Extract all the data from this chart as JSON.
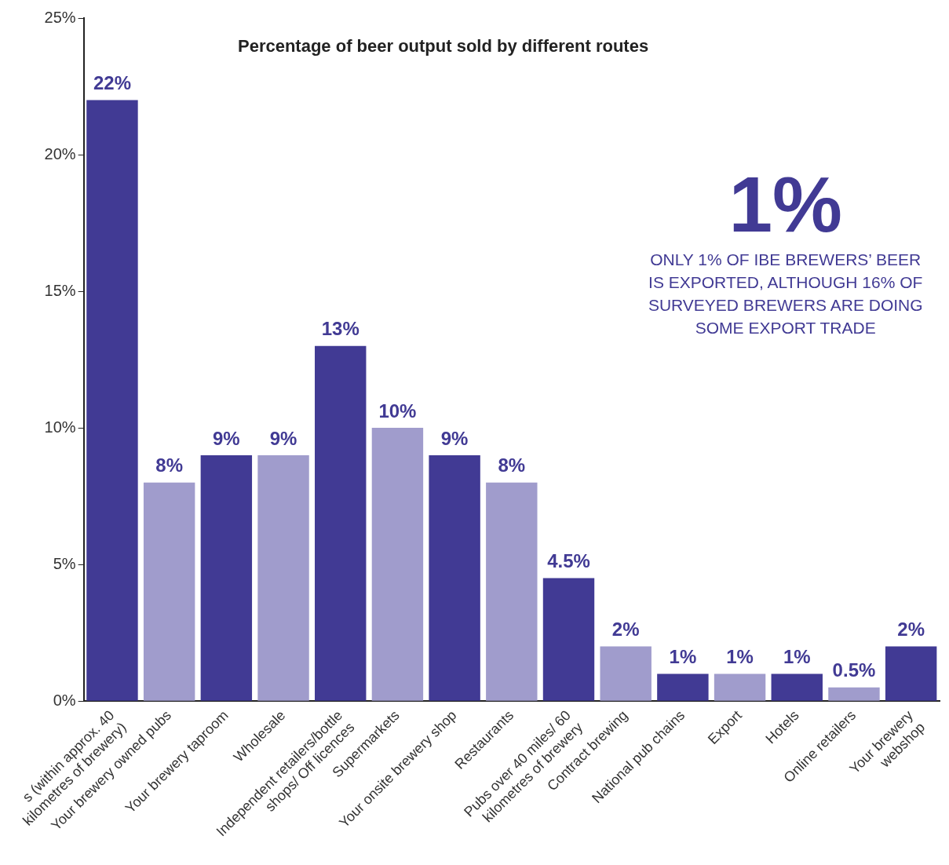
{
  "chart_data": {
    "type": "bar",
    "title": "Percentage of beer output sold by different routes",
    "categories": [
      "s (within approx. 40\nkilometres of brewery)",
      "Your brewery owned pubs",
      "Your brewery taproom",
      "Wholesale",
      "Independent retailers/bottle\nshops/ Off licences",
      "Supermarkets",
      "Your onsite brewery shop",
      "Restaurants",
      "Pubs over 40 miles/ 60\nkilometres of brewery",
      "Contract brewing",
      "National pub chains",
      "Export",
      "Hotels",
      "Online retailers",
      "Your brewery\nwebshop"
    ],
    "values": [
      22,
      8,
      9,
      9,
      13,
      10,
      9,
      8,
      4.5,
      2,
      1,
      1,
      1,
      0.5,
      2
    ],
    "value_labels": [
      "22%",
      "8%",
      "9%",
      "9%",
      "13%",
      "10%",
      "9%",
      "8%",
      "4.5%",
      "2%",
      "1%",
      "1%",
      "1%",
      "0.5%",
      "2%"
    ],
    "colors": [
      "#413a94",
      "#a09ccc",
      "#413a94",
      "#a09ccc",
      "#413a94",
      "#a09ccc",
      "#413a94",
      "#a09ccc",
      "#413a94",
      "#a09ccc",
      "#413a94",
      "#a09ccc",
      "#413a94",
      "#a09ccc",
      "#413a94"
    ],
    "ylim": [
      0,
      25
    ],
    "yticks": [
      {
        "value": 0,
        "label": "0%"
      },
      {
        "value": 5,
        "label": "5%"
      },
      {
        "value": 10,
        "label": "10%"
      },
      {
        "value": 15,
        "label": "15%"
      },
      {
        "value": 20,
        "label": "20%"
      },
      {
        "value": 25,
        "label": "25%"
      }
    ],
    "grid": false,
    "legend": false,
    "annotations": [
      "1%",
      "ONLY 1% OF IBE BREWERS’ BEER IS EXPORTED, ALTHOUGH 16% OF SURVEYED BREWERS ARE DOING SOME EXPORT TRADE"
    ]
  }
}
